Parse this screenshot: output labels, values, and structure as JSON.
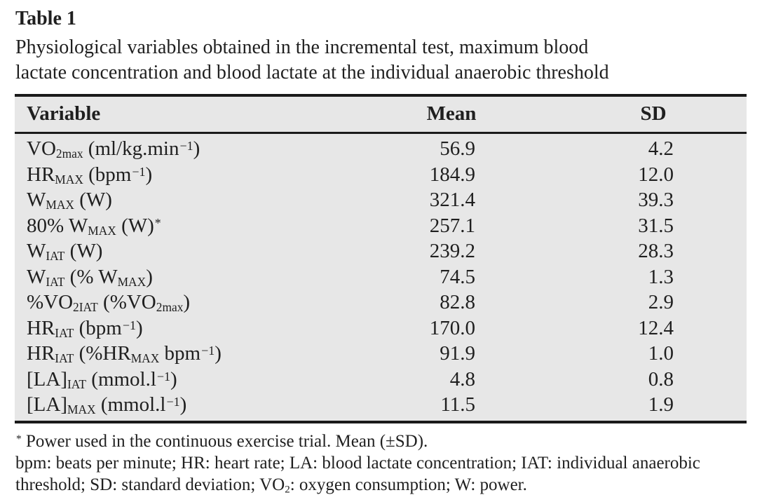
{
  "title": "Table 1",
  "caption": {
    "lines": [
      "Physiological variables obtained in the incremental test, maximum blood",
      "lactate concentration and blood lactate at the individual anaerobic threshold"
    ]
  },
  "columns": [
    {
      "key": "variable",
      "label": "Variable"
    },
    {
      "key": "mean",
      "label": "Mean"
    },
    {
      "key": "sd",
      "label": "SD"
    }
  ],
  "rows": [
    {
      "variable": [
        [
          "t",
          "VO"
        ],
        [
          "sub",
          "2max"
        ],
        [
          "t",
          " (ml/kg.min"
        ],
        [
          "sup",
          "−1"
        ],
        [
          "t",
          ")"
        ]
      ],
      "mean": "56.9",
      "sd": "4.2"
    },
    {
      "variable": [
        [
          "t",
          "HR"
        ],
        [
          "sub",
          "MAX"
        ],
        [
          "t",
          " (bpm"
        ],
        [
          "sup",
          "−1"
        ],
        [
          "t",
          ")"
        ]
      ],
      "mean": "184.9",
      "sd": "12.0"
    },
    {
      "variable": [
        [
          "t",
          "W"
        ],
        [
          "sub",
          "MAX"
        ],
        [
          "t",
          " (W)"
        ]
      ],
      "mean": "321.4",
      "sd": "39.3"
    },
    {
      "variable": [
        [
          "t",
          "80% W"
        ],
        [
          "sub",
          "MAX"
        ],
        [
          "t",
          " (W)"
        ],
        [
          "sup",
          "*"
        ]
      ],
      "mean": "257.1",
      "sd": "31.5"
    },
    {
      "variable": [
        [
          "t",
          "W"
        ],
        [
          "sub",
          "IAT"
        ],
        [
          "t",
          " (W)"
        ]
      ],
      "mean": "239.2",
      "sd": "28.3"
    },
    {
      "variable": [
        [
          "t",
          "W"
        ],
        [
          "sub",
          "IAT"
        ],
        [
          "t",
          " (% W"
        ],
        [
          "sub",
          "MAX"
        ],
        [
          "t",
          ")"
        ]
      ],
      "mean": "74.5",
      "sd": "1.3"
    },
    {
      "variable": [
        [
          "t",
          "%VO"
        ],
        [
          "sub",
          "2IAT"
        ],
        [
          "t",
          " (%VO"
        ],
        [
          "sub",
          "2max"
        ],
        [
          "t",
          ")"
        ]
      ],
      "mean": "82.8",
      "sd": "2.9"
    },
    {
      "variable": [
        [
          "t",
          "HR"
        ],
        [
          "sub",
          "IAT"
        ],
        [
          "t",
          " (bpm"
        ],
        [
          "sup",
          "−1"
        ],
        [
          "t",
          ")"
        ]
      ],
      "mean": "170.0",
      "sd": "12.4"
    },
    {
      "variable": [
        [
          "t",
          "HR"
        ],
        [
          "sub",
          "IAT"
        ],
        [
          "t",
          " (%HR"
        ],
        [
          "sub",
          "MAX"
        ],
        [
          "t",
          " bpm"
        ],
        [
          "sup",
          "−1"
        ],
        [
          "t",
          ")"
        ]
      ],
      "mean": "91.9",
      "sd": "1.0"
    },
    {
      "variable": [
        [
          "t",
          "[LA]"
        ],
        [
          "sub",
          "IAT"
        ],
        [
          "t",
          " (mmol.l"
        ],
        [
          "sup",
          "−1"
        ],
        [
          "t",
          ")"
        ]
      ],
      "mean": "4.8",
      "sd": "0.8"
    },
    {
      "variable": [
        [
          "t",
          "[LA]"
        ],
        [
          "sub",
          "MAX"
        ],
        [
          "t",
          " (mmol.l"
        ],
        [
          "sup",
          "−1"
        ],
        [
          "t",
          ")"
        ]
      ],
      "mean": "11.5",
      "sd": "1.9"
    }
  ],
  "footnotes": [
    {
      "name": "power-note",
      "segments": [
        [
          "sup",
          "*"
        ],
        [
          "t",
          " Power used in the continuous exercise trial. Mean (±SD)."
        ]
      ]
    },
    {
      "name": "abbreviations-note",
      "segments": [
        [
          "t",
          "bpm: beats per minute; HR: heart rate; LA: blood lactate concentration; IAT: individual anaerobic threshold; SD: standard deviation; VO"
        ],
        [
          "sub",
          "2"
        ],
        [
          "t",
          ": oxygen consumption; W: power."
        ]
      ]
    }
  ],
  "colors": {
    "page_background": "#ffffff",
    "table_background": "#e7e7e7",
    "text": "#1f1f1f",
    "rule": "#1a1a1a"
  }
}
